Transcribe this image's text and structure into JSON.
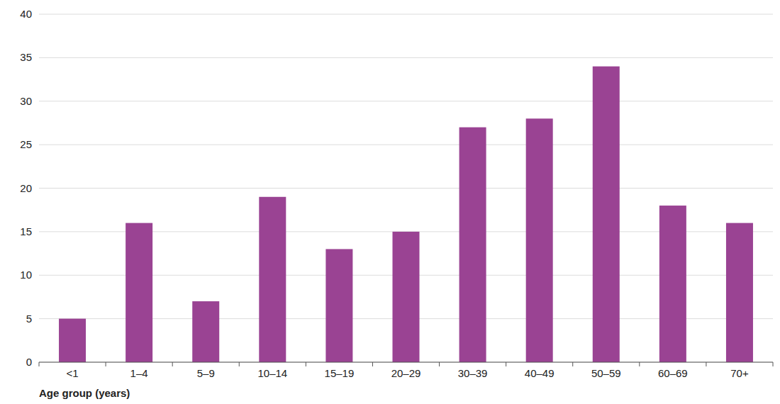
{
  "chart_data": {
    "type": "bar",
    "x_label": "Age group (years)",
    "categories": [
      "<1",
      "1–4",
      "5–9",
      "10–14",
      "15–19",
      "20–29",
      "30–39",
      "40–49",
      "50–59",
      "60–69",
      "70+"
    ],
    "values": [
      5,
      16,
      7,
      19,
      13,
      15,
      27,
      28,
      34,
      18,
      16
    ],
    "color": "#9a4393",
    "ylim": [
      0,
      40
    ],
    "yticks": [
      0,
      5,
      10,
      15,
      20,
      25,
      30,
      35,
      40
    ],
    "grid": true
  }
}
